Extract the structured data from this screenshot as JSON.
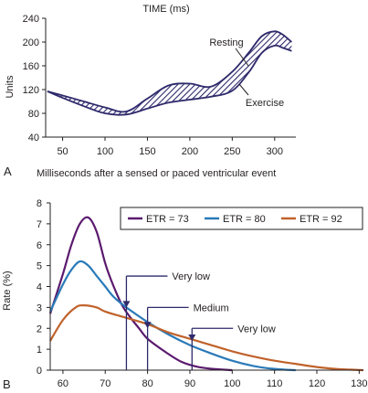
{
  "chart_data": [
    {
      "panel": "A",
      "type": "area",
      "title": "TIME (ms)",
      "ylabel": "Units",
      "xlim": [
        30,
        325
      ],
      "ylim": [
        40,
        240
      ],
      "xticks": [
        50,
        100,
        150,
        200,
        250,
        300
      ],
      "yticks": [
        40,
        80,
        120,
        160,
        200,
        240
      ],
      "grid": false,
      "band_fill": "#2e2a6b",
      "series": [
        {
          "name": "Resting",
          "x": [
            32,
            50,
            75,
            100,
            125,
            150,
            175,
            200,
            225,
            250,
            270,
            285,
            300,
            310,
            320
          ],
          "values": [
            117,
            110,
            100,
            90,
            83,
            105,
            127,
            130,
            125,
            150,
            183,
            210,
            218,
            212,
            200
          ]
        },
        {
          "name": "Exercise",
          "x": [
            32,
            50,
            75,
            100,
            125,
            150,
            175,
            200,
            225,
            250,
            270,
            285,
            300,
            310,
            320
          ],
          "values": [
            117,
            106,
            92,
            80,
            78,
            88,
            98,
            103,
            108,
            118,
            150,
            182,
            194,
            190,
            185
          ]
        }
      ],
      "annotations": [
        "Resting",
        "Exercise"
      ]
    },
    {
      "panel": "B",
      "type": "line",
      "title": "Milliseconds after a sensed or paced ventricular event",
      "ylabel": "Rate (%)",
      "xlim": [
        57,
        131
      ],
      "ylim": [
        0,
        8
      ],
      "xticks": [
        60,
        70,
        80,
        90,
        100,
        110,
        120,
        130
      ],
      "yticks": [
        0,
        1,
        2,
        3,
        4,
        5,
        6,
        7,
        8
      ],
      "grid": false,
      "legend_position": "top-right",
      "series": [
        {
          "name": "ETR = 73",
          "color": "#5b1a6e",
          "x": [
            57,
            60,
            62,
            64,
            66,
            68,
            70,
            72,
            74,
            76,
            78,
            80,
            84,
            88,
            92,
            96,
            100
          ],
          "values": [
            2.7,
            4.6,
            6.0,
            7.0,
            7.3,
            6.6,
            5.1,
            4.0,
            3.1,
            2.5,
            2.0,
            1.5,
            0.9,
            0.4,
            0.15,
            0.05,
            0
          ]
        },
        {
          "name": "ETR = 80",
          "color": "#2a7ab8",
          "x": [
            57,
            60,
            62,
            64,
            66,
            68,
            70,
            72,
            75,
            80,
            85,
            90,
            95,
            100,
            105,
            110,
            115
          ],
          "values": [
            2.8,
            4.1,
            4.8,
            5.2,
            5.0,
            4.5,
            4.0,
            3.5,
            3.0,
            2.3,
            1.7,
            1.2,
            0.8,
            0.45,
            0.2,
            0.06,
            0
          ]
        },
        {
          "name": "ETR = 92",
          "color": "#c0622b",
          "x": [
            57,
            60,
            63,
            65,
            68,
            70,
            75,
            80,
            85,
            90,
            95,
            100,
            105,
            110,
            115,
            120,
            125,
            131
          ],
          "values": [
            1.4,
            2.4,
            3.0,
            3.1,
            3.0,
            2.8,
            2.5,
            2.2,
            1.8,
            1.5,
            1.2,
            0.9,
            0.65,
            0.45,
            0.3,
            0.15,
            0.05,
            0
          ]
        }
      ],
      "markers": [
        {
          "label": "Very low",
          "x": 75,
          "y_top": 4.5,
          "y_arrow": 3.0
        },
        {
          "label": "Medium",
          "x": 80,
          "y_top": 3.0,
          "y_arrow": 2.0
        },
        {
          "label": "Very low",
          "x": 90.5,
          "y_top": 2.0,
          "y_arrow": 1.4
        }
      ],
      "marker_color": "#2e2a6b"
    }
  ],
  "panel_labels": {
    "a": "A",
    "b": "B"
  }
}
